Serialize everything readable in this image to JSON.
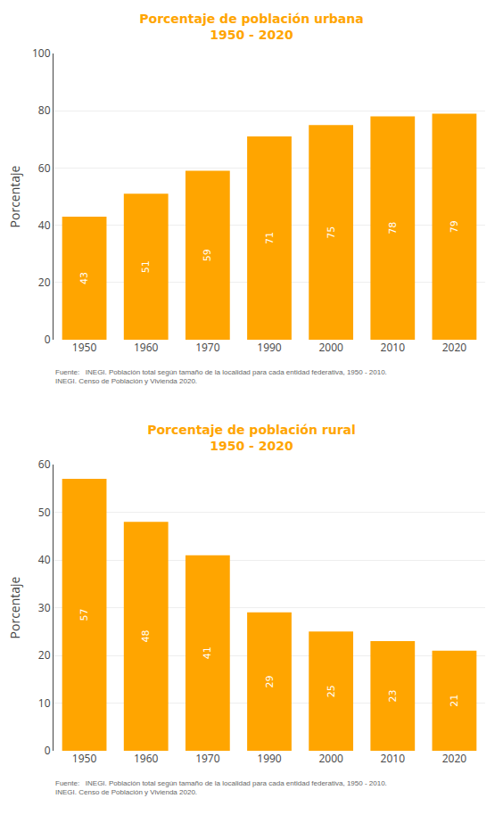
{
  "chart_data": [
    {
      "type": "bar",
      "title": "Porcentaje de población urbana",
      "subtitle": "1950 - 2020",
      "y_label": "Porcentaje",
      "categories": [
        "1950",
        "1960",
        "1970",
        "1990",
        "2000",
        "2010",
        "2020"
      ],
      "values": [
        43,
        51,
        59,
        71,
        75,
        78,
        79
      ],
      "color": "#FFA500",
      "ylim": [
        0,
        100
      ],
      "yticks": [
        0,
        20,
        40,
        60,
        80,
        100
      ],
      "grid": true,
      "data_labels": true,
      "annotations": [
        "Fuente:   INEGI. Población total según tamaño de la localidad para cada entidad federativa, 1950 - 2010.\nINEGI. Censo de Población y Vivienda 2020."
      ]
    },
    {
      "type": "bar",
      "title": "Porcentaje de población rural",
      "subtitle": "1950 - 2020",
      "y_label": "Porcentaje",
      "categories": [
        "1950",
        "1960",
        "1970",
        "1990",
        "2000",
        "2010",
        "2020"
      ],
      "values": [
        57,
        48,
        41,
        29,
        25,
        23,
        21
      ],
      "color": "#FFA500",
      "ylim": [
        0,
        60
      ],
      "yticks": [
        0,
        10,
        20,
        30,
        40,
        50,
        60
      ],
      "grid": true,
      "data_labels": true,
      "annotations": [
        "Fuente:   INEGI. Población total según tamaño de la localidad para cada entidad federativa, 1950 - 2010.\nINEGI. Censo de Población y Vivienda 2020."
      ]
    }
  ]
}
